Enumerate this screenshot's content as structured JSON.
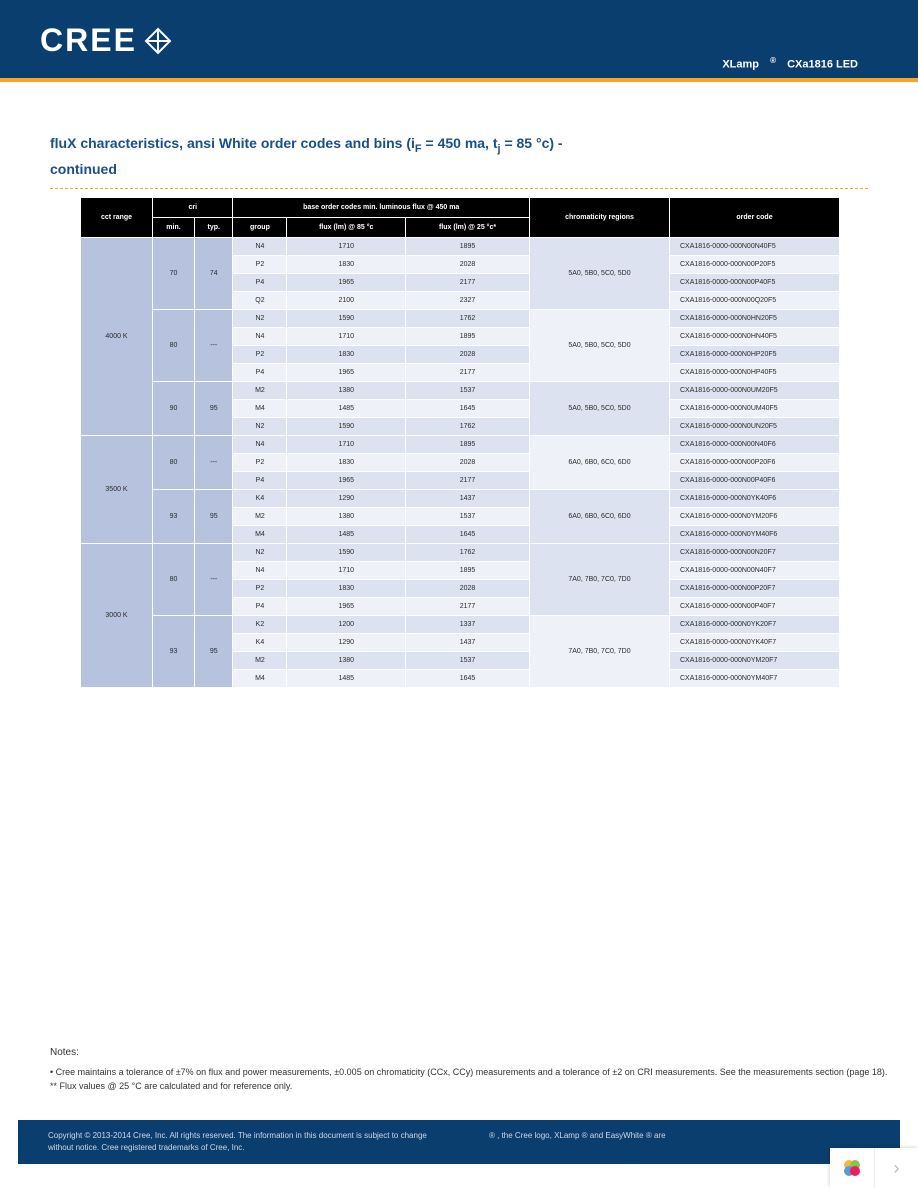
{
  "header": {
    "logo_text": "CREE",
    "product_line": "XLamp",
    "product_model": "CXa1816 LED"
  },
  "title": {
    "line1_a": "fluX characteristics, ansi White order codes and bins (i",
    "line1_b": " = 450 ma, t",
    "line1_c": " = 85 °c) -",
    "line2": "continued"
  },
  "table": {
    "headers": {
      "cct": "cct range",
      "cri": "cri",
      "cri_min": "min.",
      "cri_typ": "typ.",
      "base": "base order codes min. luminous flux @ 450 ma",
      "group": "group",
      "flux85": "flux (lm) @ 85 °c",
      "flux25": "flux (lm) @ 25 °c*",
      "chrom": "chromaticity regions",
      "order": "order code"
    },
    "groups": [
      {
        "cct": "4000 K",
        "cri_blocks": [
          {
            "min": "70",
            "typ": "74",
            "chrom": "5A0, 5B0, 5C0, 5D0",
            "rows": [
              {
                "g": "N4",
                "f85": "1710",
                "f25": "1895",
                "code": "CXA1816-0000-000N00N40F5"
              },
              {
                "g": "P2",
                "f85": "1830",
                "f25": "2028",
                "code": "CXA1816-0000-000N00P20F5"
              },
              {
                "g": "P4",
                "f85": "1965",
                "f25": "2177",
                "code": "CXA1816-0000-000N00P40F5"
              },
              {
                "g": "Q2",
                "f85": "2100",
                "f25": "2327",
                "code": "CXA1816-0000-000N00Q20F5"
              }
            ]
          },
          {
            "min": "80",
            "typ": "---",
            "chrom": "5A0, 5B0, 5C0, 5D0",
            "rows": [
              {
                "g": "N2",
                "f85": "1590",
                "f25": "1762",
                "code": "CXA1816-0000-000N0HN20F5"
              },
              {
                "g": "N4",
                "f85": "1710",
                "f25": "1895",
                "code": "CXA1816-0000-000N0HN40F5"
              },
              {
                "g": "P2",
                "f85": "1830",
                "f25": "2028",
                "code": "CXA1816-0000-000N0HP20F5"
              },
              {
                "g": "P4",
                "f85": "1965",
                "f25": "2177",
                "code": "CXA1816-0000-000N0HP40F5"
              }
            ]
          },
          {
            "min": "90",
            "typ": "95",
            "chrom": "5A0, 5B0, 5C0, 5D0",
            "rows": [
              {
                "g": "M2",
                "f85": "1380",
                "f25": "1537",
                "code": "CXA1816-0000-000N0UM20F5"
              },
              {
                "g": "M4",
                "f85": "1485",
                "f25": "1645",
                "code": "CXA1816-0000-000N0UM40F5"
              },
              {
                "g": "N2",
                "f85": "1590",
                "f25": "1762",
                "code": "CXA1816-0000-000N0UN20F5"
              }
            ]
          }
        ]
      },
      {
        "cct": "3500 K",
        "cri_blocks": [
          {
            "min": "80",
            "typ": "---",
            "chrom": "6A0, 6B0, 6C0, 6D0",
            "rows": [
              {
                "g": "N4",
                "f85": "1710",
                "f25": "1895",
                "code": "CXA1816-0000-000N00N40F6"
              },
              {
                "g": "P2",
                "f85": "1830",
                "f25": "2028",
                "code": "CXA1816-0000-000N00P20F6"
              },
              {
                "g": "P4",
                "f85": "1965",
                "f25": "2177",
                "code": "CXA1816-0000-000N00P40F6"
              }
            ]
          },
          {
            "min": "93",
            "typ": "95",
            "chrom": "6A0, 6B0, 6C0, 6D0",
            "rows": [
              {
                "g": "K4",
                "f85": "1290",
                "f25": "1437",
                "code": "CXA1816-0000-000N0YK40F6"
              },
              {
                "g": "M2",
                "f85": "1380",
                "f25": "1537",
                "code": "CXA1816-0000-000N0YM20F6"
              },
              {
                "g": "M4",
                "f85": "1485",
                "f25": "1645",
                "code": "CXA1816-0000-000N0YM40F6"
              }
            ]
          }
        ]
      },
      {
        "cct": "3000 K",
        "cri_blocks": [
          {
            "min": "80",
            "typ": "---",
            "chrom": "7A0, 7B0, 7C0, 7D0",
            "rows": [
              {
                "g": "N2",
                "f85": "1590",
                "f25": "1762",
                "code": "CXA1816-0000-000N00N20F7"
              },
              {
                "g": "N4",
                "f85": "1710",
                "f25": "1895",
                "code": "CXA1816-0000-000N00N40F7"
              },
              {
                "g": "P2",
                "f85": "1830",
                "f25": "2028",
                "code": "CXA1816-0000-000N00P20F7"
              },
              {
                "g": "P4",
                "f85": "1965",
                "f25": "2177",
                "code": "CXA1816-0000-000N00P40F7"
              }
            ]
          },
          {
            "min": "93",
            "typ": "95",
            "chrom": "7A0, 7B0, 7C0, 7D0",
            "rows": [
              {
                "g": "K2",
                "f85": "1200",
                "f25": "1337",
                "code": "CXA1816-0000-000N0YK20F7"
              },
              {
                "g": "K4",
                "f85": "1290",
                "f25": "1437",
                "code": "CXA1816-0000-000N0YK40F7"
              },
              {
                "g": "M2",
                "f85": "1380",
                "f25": "1537",
                "code": "CXA1816-0000-000N0YM20F7"
              },
              {
                "g": "M4",
                "f85": "1485",
                "f25": "1645",
                "code": "CXA1816-0000-000N0YM40F7"
              }
            ]
          }
        ]
      }
    ]
  },
  "notes": {
    "title": "Notes:",
    "n1": "•  Cree maintains a tolerance of ±7% on flux and power measurements, ±0.005 on chromaticity (CCx, CCy) measurements and a tolerance of ±2 on CRI measurements. See the measurements section (page 18).",
    "n2": "** Flux values @ 25 °C are calculated and for reference only."
  },
  "footer": {
    "left": "Copyright © 2013-2014 Cree, Inc. All rights reserved. The information in this document is subject to change without notice. Cree registered trademarks of Cree, Inc.",
    "right_a": ", the Cree logo, XLamp",
    "right_b": " and EasyWhite",
    "right_c": " are"
  },
  "colors": {
    "header_bg": "#0a3e6e",
    "accent": "#f5a623",
    "title": "#1a4f8a",
    "th_bg": "#000000",
    "cell_dark": "#b7c2de",
    "cell_light": "#dce2ef",
    "cell_lightest": "#eef1f7"
  }
}
